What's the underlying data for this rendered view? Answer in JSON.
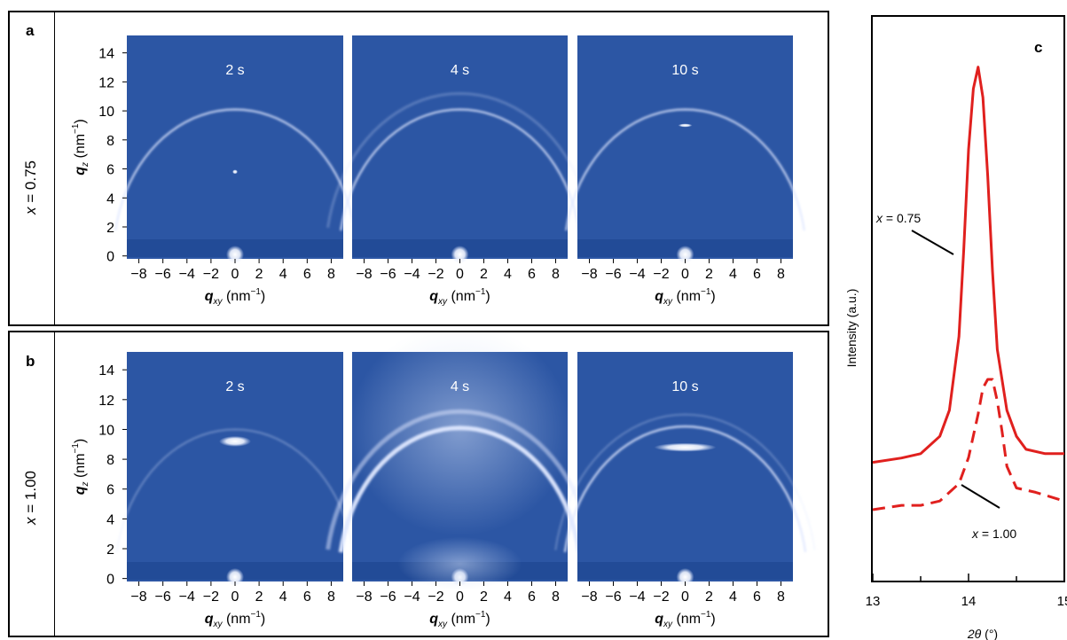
{
  "panels": {
    "a": "a",
    "b": "b",
    "c": "c"
  },
  "rows": [
    {
      "var": "x",
      "eq": "= 0.75"
    },
    {
      "var": "x",
      "eq": "= 1.00"
    }
  ],
  "gixd": {
    "times": [
      "2 s",
      "4 s",
      "10 s"
    ],
    "x_ticks": [
      "−8",
      "−6",
      "−4",
      "−2",
      "0",
      "2",
      "4",
      "6",
      "8"
    ],
    "y_ticks": [
      "0",
      "2",
      "4",
      "6",
      "8",
      "10",
      "12",
      "14"
    ],
    "xlabel": {
      "sym": "q",
      "sub": "xy",
      "unit": " (nm",
      "sup": "−1",
      ")": ")"
    },
    "ylabel": {
      "sym": "q",
      "sub": "z",
      "unit": " (nm",
      "sup": "−1"
    },
    "colors": {
      "background": "#2c56a4",
      "ring": "#dfe8ff"
    }
  },
  "chart_data": {
    "type": "line",
    "xlabel": "2θ (°)",
    "ylabel": "Intensity (a.u.)",
    "xlim": [
      13,
      15
    ],
    "x_ticks": [
      "13",
      "14",
      "15"
    ],
    "series": [
      {
        "name": "x = 0.75",
        "style": "solid",
        "color": "#e0201e",
        "x": [
          13.0,
          13.3,
          13.5,
          13.7,
          13.8,
          13.9,
          13.95,
          14.0,
          14.05,
          14.1,
          14.15,
          14.2,
          14.25,
          14.3,
          14.4,
          14.5,
          14.6,
          14.8,
          15.0
        ],
        "y": [
          0.06,
          0.07,
          0.08,
          0.12,
          0.18,
          0.35,
          0.55,
          0.78,
          0.92,
          0.97,
          0.9,
          0.72,
          0.5,
          0.32,
          0.18,
          0.12,
          0.09,
          0.08,
          0.08
        ]
      },
      {
        "name": "x = 1.00",
        "style": "dashed",
        "color": "#e0201e",
        "x": [
          13.0,
          13.3,
          13.5,
          13.7,
          13.9,
          14.0,
          14.1,
          14.15,
          14.2,
          14.25,
          14.3,
          14.35,
          14.4,
          14.5,
          14.7,
          15.0
        ],
        "y": [
          0.0,
          0.01,
          0.01,
          0.02,
          0.06,
          0.12,
          0.22,
          0.28,
          0.3,
          0.3,
          0.25,
          0.18,
          0.1,
          0.05,
          0.04,
          0.02
        ]
      }
    ],
    "annotations": [
      {
        "var": "x",
        "eq": "= 0.75"
      },
      {
        "var": "x",
        "eq": "= 1.00"
      }
    ]
  }
}
